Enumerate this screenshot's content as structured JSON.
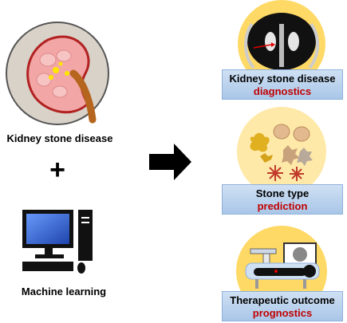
{
  "left": {
    "kidney_label": "Kidney stone disease",
    "plus_symbol": "+",
    "ml_label": "Machine learning"
  },
  "right": {
    "panels": [
      {
        "line1": "Kidney stone disease",
        "line2": "diagnostics"
      },
      {
        "line1": "Stone type",
        "line2": "prediction"
      },
      {
        "line1": "Therapeutic outcome",
        "line2": "prognostics"
      }
    ]
  },
  "colors": {
    "accent_red": "#c00000",
    "panel_yellow": "#ffd966",
    "banner_blue": "#bcd3ee",
    "kidney_pink": "#f2a6a6",
    "ureter_brown": "#b5651d"
  },
  "icons": [
    "kidney-icon",
    "computer-icon",
    "right-arrow-icon",
    "ct-scan-icon",
    "stones-icon",
    "treatment-icon"
  ]
}
